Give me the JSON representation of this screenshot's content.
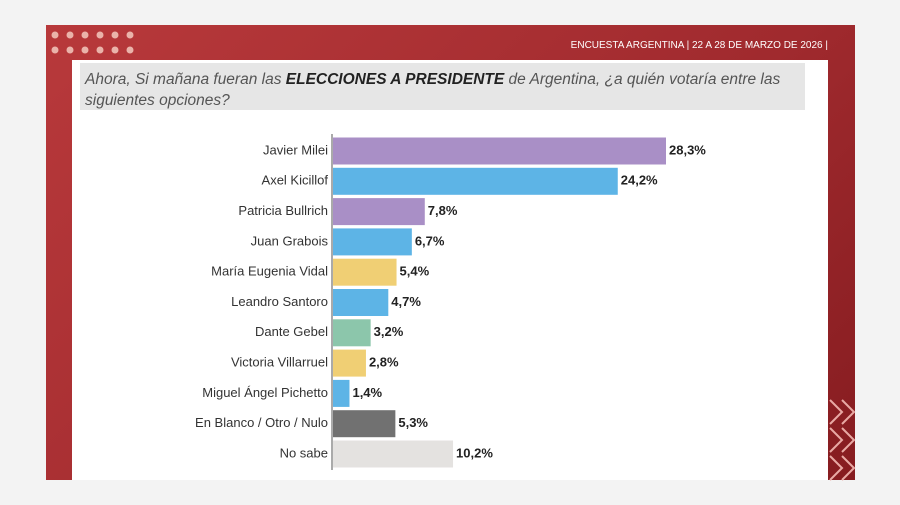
{
  "chart_data": {
    "type": "bar",
    "orientation": "horizontal",
    "header": "ENCUESTA ARGENTINA | 22 A 28 DE MARZO DE 2026 |",
    "title": [
      "Ahora, Si mañana fueran las",
      "ELECCIONES A PRESIDENTE",
      "de Argentina, ¿a quién votaría entre las siguientes opciones?"
    ],
    "categories": [
      "Javier Milei",
      "Axel Kicillof",
      "Patricia Bullrich",
      "Juan Grabois",
      "María Eugenia Vidal",
      "Leandro Santoro",
      "Dante Gebel",
      "Victoria Villarruel",
      "Miguel Ángel Pichetto",
      "En Blanco / Otro / Nulo",
      "No sabe"
    ],
    "values": [
      28.3,
      24.2,
      7.8,
      6.7,
      5.4,
      4.7,
      3.2,
      2.8,
      1.4,
      5.3,
      10.2
    ],
    "value_labels": [
      "28,3%",
      "24,2%",
      "7,8%",
      "6,7%",
      "5,4%",
      "4,7%",
      "3,2%",
      "2,8%",
      "1,4%",
      "5,3%",
      "10,2%"
    ],
    "colors": [
      "#a98fc6",
      "#5db4e6",
      "#a98fc6",
      "#5db4e6",
      "#f0cf74",
      "#5db4e6",
      "#8cc6ab",
      "#f0cf74",
      "#5db4e6",
      "#717171",
      "#e4e2e0"
    ]
  }
}
